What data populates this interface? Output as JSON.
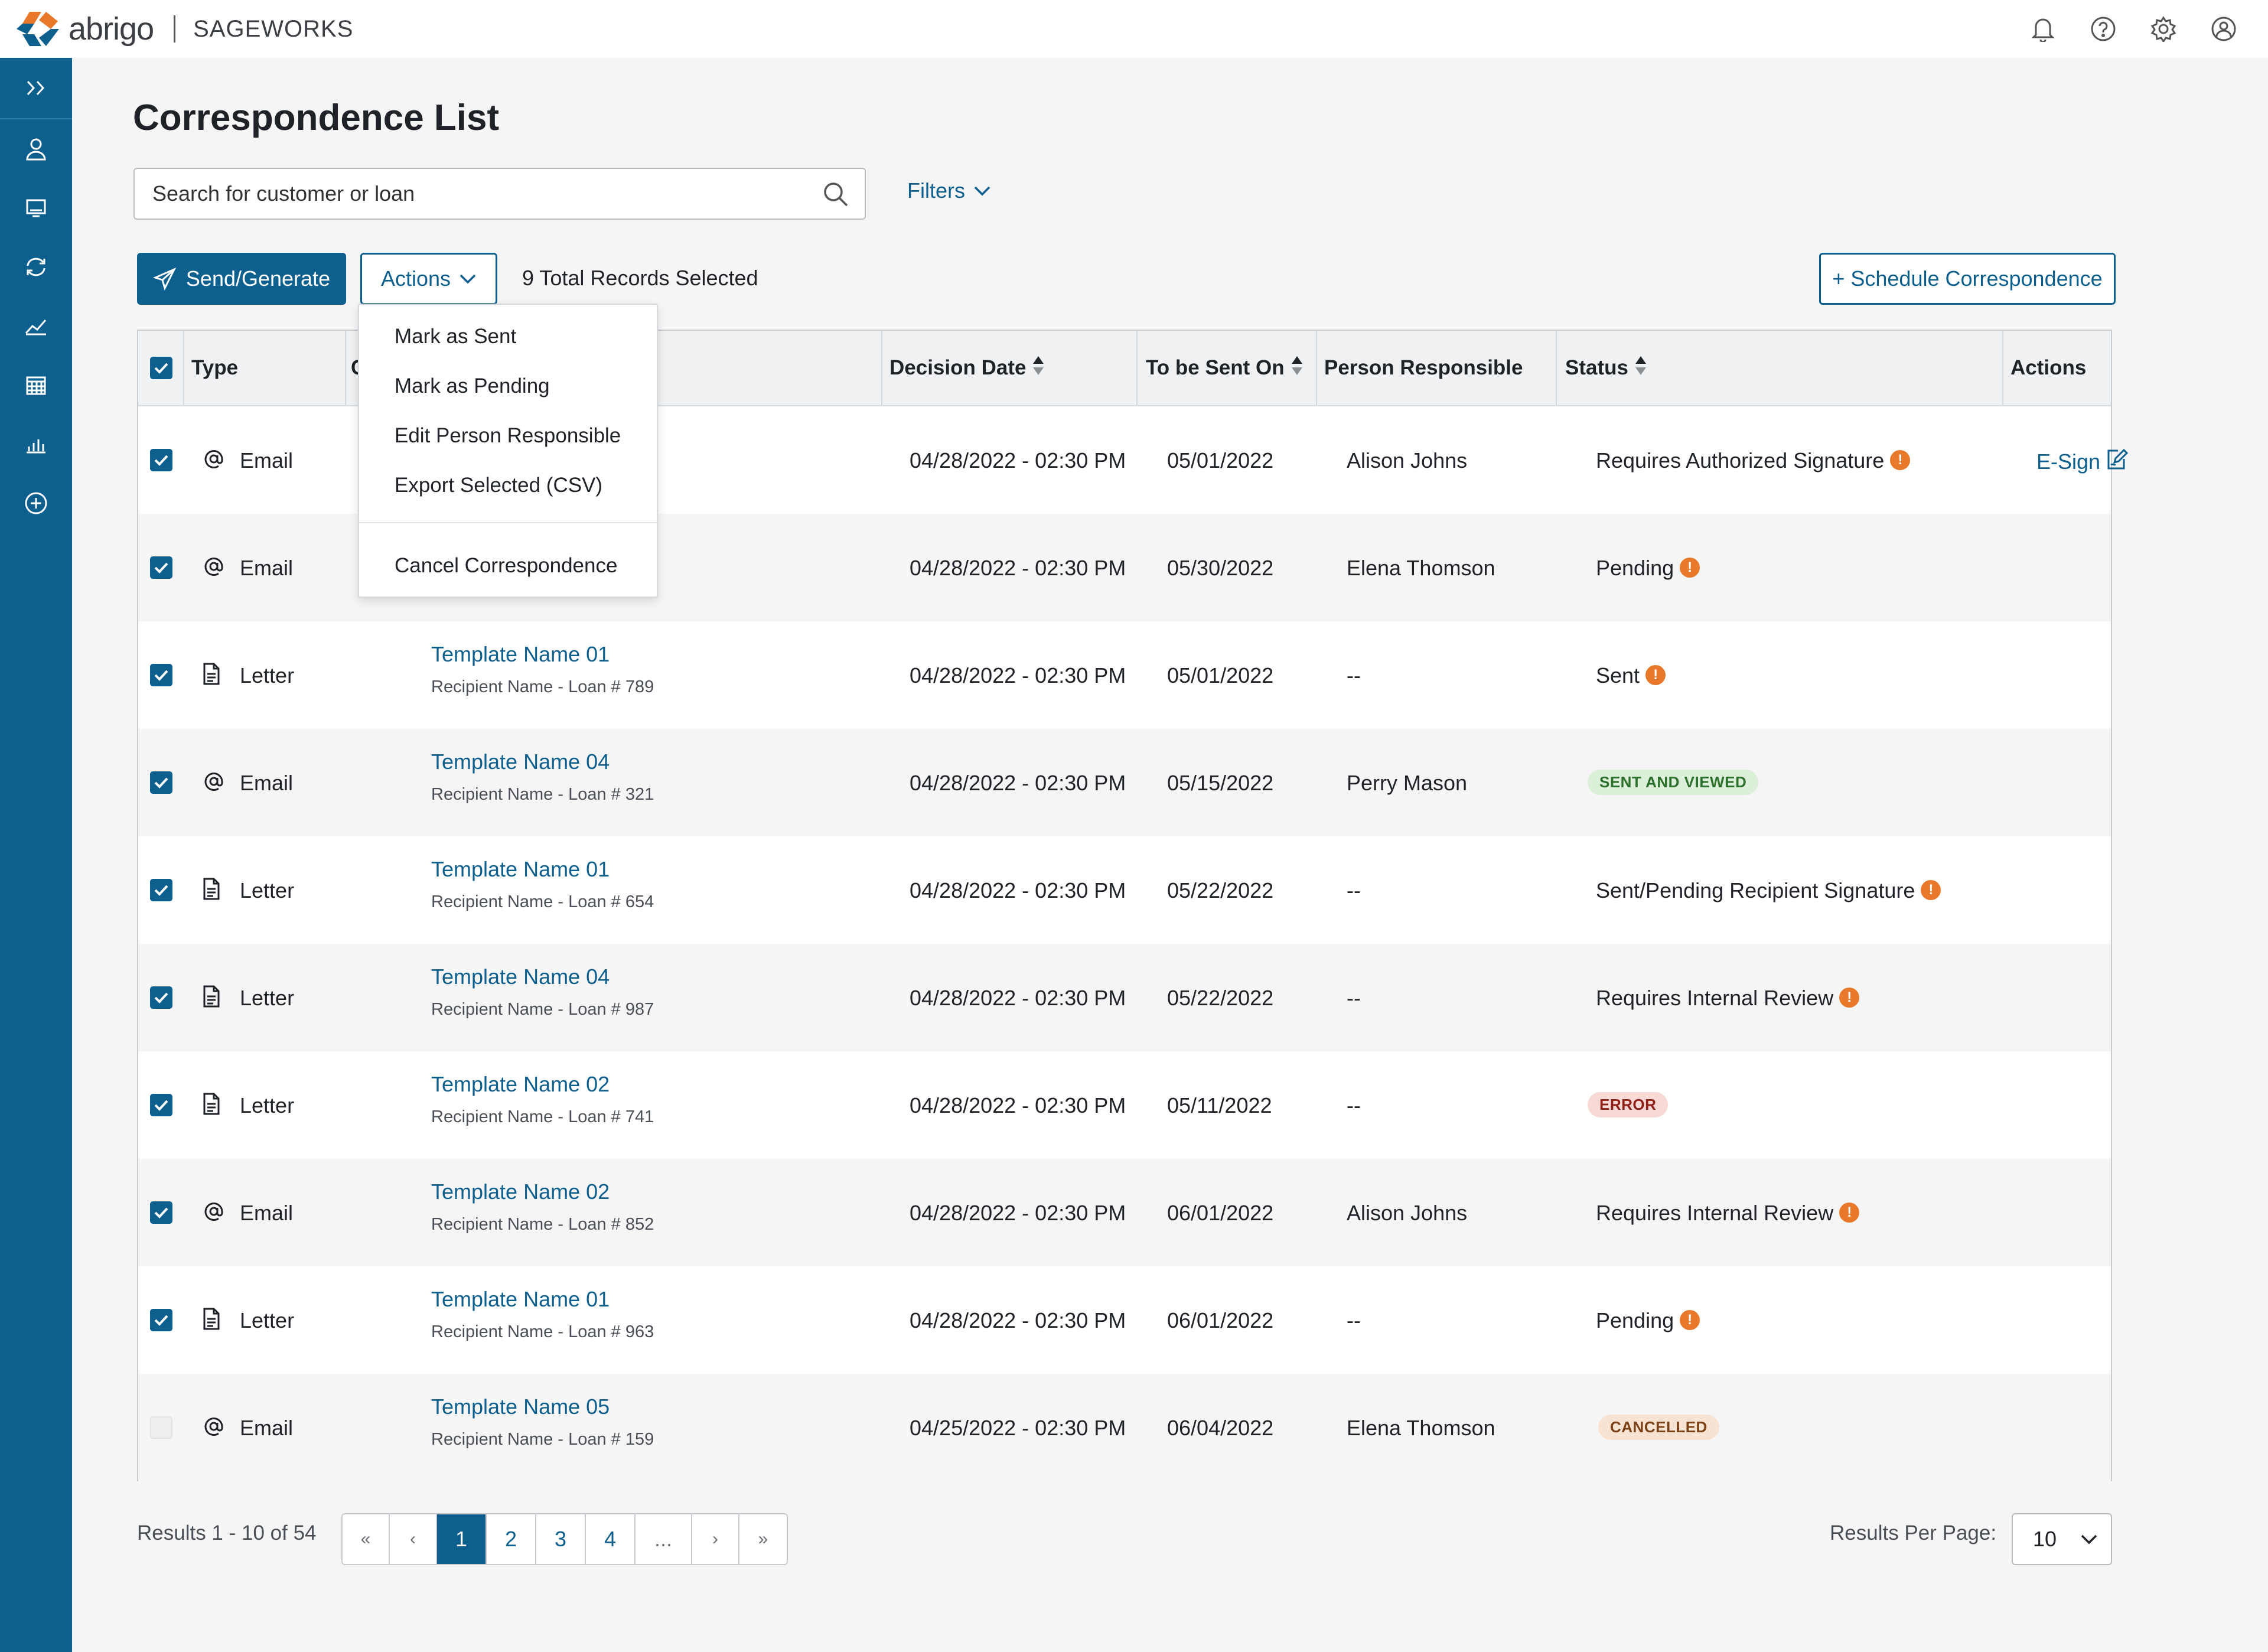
{
  "header": {
    "brand": "abrigo",
    "product": "SAGEWORKS",
    "icons": [
      "bell-icon",
      "help-icon",
      "gear-icon",
      "user-circle-icon"
    ]
  },
  "sidebar": {
    "icons": [
      "expand-chevrons-icon",
      "person-icon",
      "monitor-icon",
      "refresh-icon",
      "trend-chart-icon",
      "calendar-icon",
      "bar-chart-icon",
      "plus-circle-icon"
    ]
  },
  "page": {
    "title": "Correspondence List",
    "search_placeholder": "Search for customer or loan",
    "filters_label": "Filters"
  },
  "toolbar": {
    "send_label": "Send/Generate",
    "actions_label": "Actions",
    "selected_text": "9 Total Records Selected",
    "schedule_label": "+ Schedule Correspondence"
  },
  "actions_menu": {
    "items": [
      "Mark as Sent",
      "Mark as Pending",
      "Edit Person Responsible",
      "Export Selected (CSV)"
    ],
    "cancel": "Cancel Correspondence"
  },
  "table": {
    "columns": {
      "type": "Type",
      "correspondence": "C",
      "decision_date": "Decision Date",
      "to_be_sent": "To be Sent On",
      "person": "Person Responsible",
      "status": "Status",
      "actions": "Actions"
    },
    "rows": [
      {
        "checked": true,
        "type": "Email",
        "template": "",
        "recipient": "",
        "decision": "04/28/2022 - 02:30 PM",
        "sent_on": "05/01/2022",
        "person": "Alison Johns",
        "status": "Requires Authorized Signature",
        "status_kind": "warn",
        "action": "E-Sign"
      },
      {
        "checked": true,
        "type": "Email",
        "template": "",
        "recipient": "",
        "decision": "04/28/2022 - 02:30 PM",
        "sent_on": "05/30/2022",
        "person": "Elena Thomson",
        "status": "Pending",
        "status_kind": "warn",
        "action": ""
      },
      {
        "checked": true,
        "type": "Letter",
        "template": "Template Name 01",
        "recipient": "Recipient Name - Loan # 789",
        "decision": "04/28/2022 - 02:30 PM",
        "sent_on": "05/01/2022",
        "person": "--",
        "status": "Sent",
        "status_kind": "warn",
        "action": ""
      },
      {
        "checked": true,
        "type": "Email",
        "template": "Template Name 04",
        "recipient": "Recipient Name - Loan # 321",
        "decision": "04/28/2022 - 02:30 PM",
        "sent_on": "05/15/2022",
        "person": "Perry Mason",
        "status": "SENT AND VIEWED",
        "status_kind": "green",
        "action": ""
      },
      {
        "checked": true,
        "type": "Letter",
        "template": "Template Name 01",
        "recipient": "Recipient Name - Loan # 654",
        "decision": "04/28/2022 - 02:30 PM",
        "sent_on": "05/22/2022",
        "person": "--",
        "status": "Sent/Pending Recipient Signature",
        "status_kind": "warn",
        "action": ""
      },
      {
        "checked": true,
        "type": "Letter",
        "template": "Template Name 04",
        "recipient": "Recipient Name - Loan # 987",
        "decision": "04/28/2022 - 02:30 PM",
        "sent_on": "05/22/2022",
        "person": "--",
        "status": "Requires Internal Review",
        "status_kind": "warn",
        "action": ""
      },
      {
        "checked": true,
        "type": "Letter",
        "template": "Template Name 02",
        "recipient": "Recipient Name - Loan # 741",
        "decision": "04/28/2022 - 02:30 PM",
        "sent_on": "05/11/2022",
        "person": "--",
        "status": "ERROR",
        "status_kind": "red",
        "action": ""
      },
      {
        "checked": true,
        "type": "Email",
        "template": "Template Name 02",
        "recipient": "Recipient Name - Loan # 852",
        "decision": "04/28/2022 - 02:30 PM",
        "sent_on": "06/01/2022",
        "person": "Alison Johns",
        "status": "Requires Internal Review",
        "status_kind": "warn",
        "action": ""
      },
      {
        "checked": true,
        "type": "Letter",
        "template": "Template Name 01",
        "recipient": "Recipient Name - Loan # 963",
        "decision": "04/28/2022 - 02:30 PM",
        "sent_on": "06/01/2022",
        "person": "--",
        "status": "Pending",
        "status_kind": "warn",
        "action": ""
      },
      {
        "checked": false,
        "type": "Email",
        "template": "Template Name 05",
        "recipient": "Recipient Name - Loan # 159",
        "decision": "04/25/2022 - 02:30 PM",
        "sent_on": "06/04/2022",
        "person": "Elena Thomson",
        "status": "CANCELLED",
        "status_kind": "orange",
        "action": ""
      }
    ]
  },
  "pagination": {
    "results_text": "Results 1 - 10 of 54",
    "first": "«",
    "prev": "‹",
    "pages": [
      "1",
      "2",
      "3",
      "4"
    ],
    "ellipsis": "...",
    "next": "›",
    "last": "»",
    "current": "1",
    "per_page_label": "Results Per Page:",
    "per_page_value": "10"
  },
  "colors": {
    "brand_blue": "#0d5f8e",
    "warning_orange": "#e8782a"
  }
}
